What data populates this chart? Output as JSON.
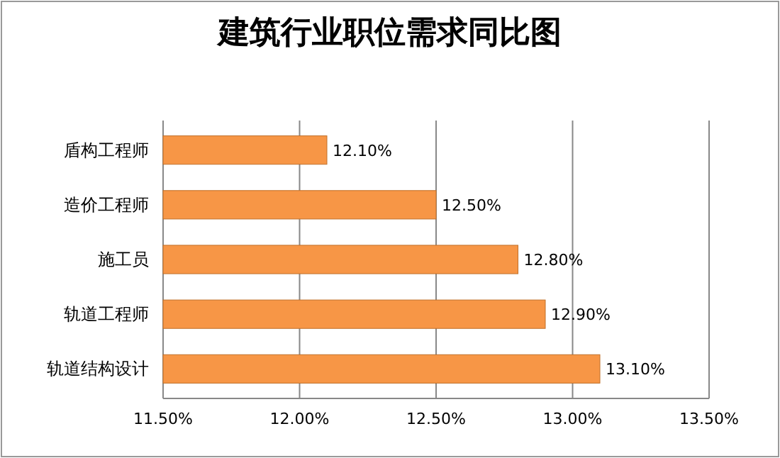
{
  "chart_data": {
    "type": "bar",
    "title": "建筑行业职位需求同比图",
    "orientation": "horizontal",
    "categories": [
      "盾构工程师",
      "造价工程师",
      "施工员",
      "轨道工程师",
      "轨道结构设计"
    ],
    "values": [
      12.1,
      12.5,
      12.8,
      12.9,
      13.1
    ],
    "value_labels": [
      "12.10%",
      "12.50%",
      "12.80%",
      "12.90%",
      "13.10%"
    ],
    "color": "#f79646",
    "xlim": [
      11.5,
      13.5
    ],
    "xticks": [
      {
        "value": 11.5,
        "label": "11.50%"
      },
      {
        "value": 12,
        "label": "12.00%"
      },
      {
        "value": 12.5,
        "label": "12.50%"
      },
      {
        "value": 13,
        "label": "13.00%"
      },
      {
        "value": 13.5,
        "label": "13.50%"
      }
    ],
    "grid": "x"
  }
}
